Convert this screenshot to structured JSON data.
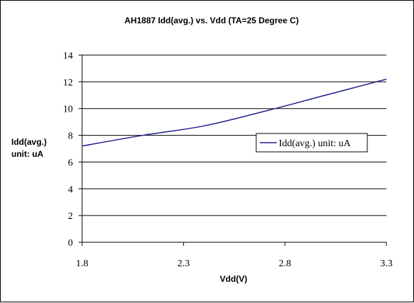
{
  "chart_data": {
    "type": "line",
    "title": "AH1887 Idd(avg.) vs. Vdd (TA=25 Degree C)",
    "xlabel": "Vdd(V)",
    "ylabel_lines": [
      "Idd(avg.)",
      "unit: uA"
    ],
    "xlim": [
      1.8,
      3.3
    ],
    "ylim": [
      0,
      14
    ],
    "x_ticks": [
      "1.8",
      "2.3",
      "2.8",
      "3.3"
    ],
    "y_ticks": [
      "0",
      "2",
      "4",
      "6",
      "8",
      "10",
      "12",
      "14"
    ],
    "grid": "horizontal",
    "legend_position": "right-middle",
    "series": [
      {
        "name": "Idd(avg.) unit: uA",
        "color": "#1f1f8f",
        "x": [
          1.8,
          2.1,
          2.4,
          2.7,
          3.0,
          3.3
        ],
        "y": [
          7.2,
          8.0,
          8.7,
          9.8,
          11.0,
          12.2
        ]
      }
    ]
  }
}
